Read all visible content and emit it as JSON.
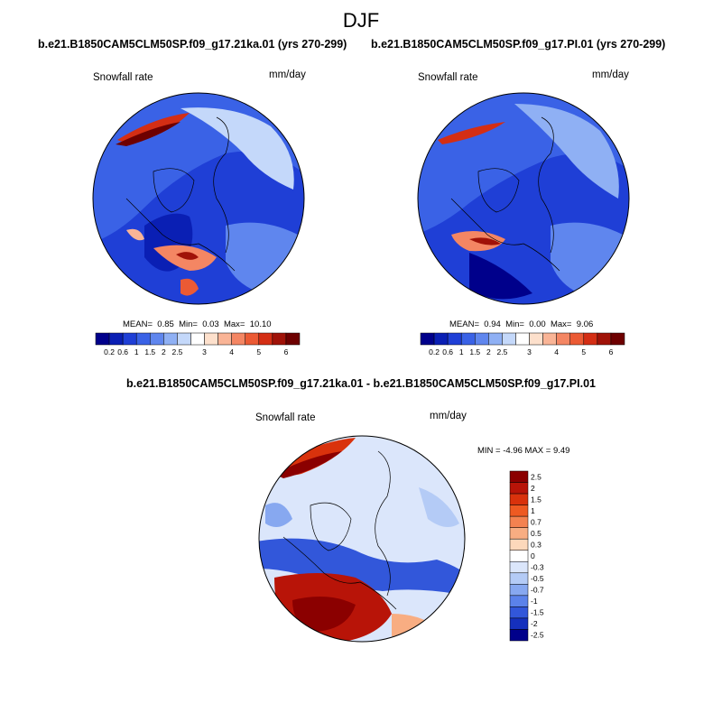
{
  "figure": {
    "season": "DJF",
    "diff_title": "b.e21.B1850CAM5CLM50SP.f09_g17.21ka.01 - b.e21.B1850CAM5CLM50SP.f09_g17.PI.01"
  },
  "panels": [
    {
      "title": "b.e21.B1850CAM5CLM50SP.f09_g17.21ka.01 (yrs 270-299)",
      "variable": "Snowfall rate",
      "units": "mm/day",
      "stats": {
        "mean_label": "MEAN=",
        "mean": "0.85",
        "min_label": "Min=",
        "min": "0.03",
        "max_label": "Max=",
        "max": "10.10"
      }
    },
    {
      "title": "b.e21.B1850CAM5CLM50SP.f09_g17.PI.01 (yrs 270-299)",
      "variable": "Snowfall rate",
      "units": "mm/day",
      "stats": {
        "mean_label": "MEAN=",
        "mean": "0.94",
        "min_label": "Min=",
        "min": "0.00",
        "max_label": "Max=",
        "max": "9.06"
      }
    },
    {
      "variable": "Snowfall rate",
      "units": "mm/day",
      "stats_text": "MIN =  -4.96 MAX =   9.49"
    }
  ],
  "colorbar_abs": {
    "colors": [
      "#00008b",
      "#0a1fb4",
      "#1f3fd6",
      "#3a62e6",
      "#5f86ee",
      "#8fb0f4",
      "#c4d8fa",
      "#ffffff",
      "#fde0cc",
      "#f9b496",
      "#f48663",
      "#eb5a34",
      "#d42e14",
      "#a01208",
      "#6e0000"
    ],
    "tick_labels": [
      "0.2",
      "0.6",
      "1",
      "1.5",
      "2",
      "2.5",
      "3",
      "4",
      "5",
      "6"
    ]
  },
  "colorbar_diff": {
    "colors": [
      "#8b0000",
      "#b81408",
      "#d9320c",
      "#ee5a22",
      "#f48250",
      "#f8ad82",
      "#fcd8bb",
      "#ffffff",
      "#dbe6fb",
      "#b4cbf6",
      "#87a8f0",
      "#5b82ea",
      "#3257da",
      "#1530bd",
      "#00008b"
    ],
    "tick_labels": [
      "2.5",
      "2",
      "1.5",
      "1",
      "0.7",
      "0.5",
      "0.3",
      "0",
      "-0.3",
      "-0.5",
      "-0.7",
      "-1",
      "-1.5",
      "-2",
      "-2.5"
    ]
  }
}
